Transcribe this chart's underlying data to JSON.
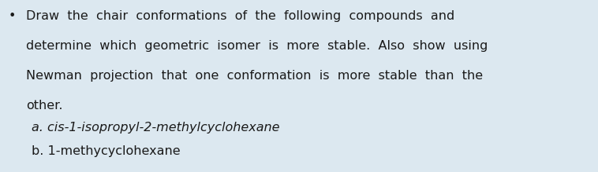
{
  "background_color": "#dce8f0",
  "bullet_char": "•",
  "main_text_lines": [
    "Draw  the  chair  conformations  of  the  following  compounds  and",
    "determine  which  geometric  isomer  is  more  stable.  Also  show  using",
    "Newman  projection  that  one  conformation  is  more  stable  than  the",
    "other."
  ],
  "item_a_full": "a. cis-1-isopropyl-2-methylcyclohexane",
  "item_b": "b. 1-methycyclohexane",
  "font_size_main": 11.5,
  "font_size_items": 11.5,
  "text_color": "#1a1a1a",
  "fig_width": 7.58,
  "fig_height": 2.19,
  "dpi": 100
}
